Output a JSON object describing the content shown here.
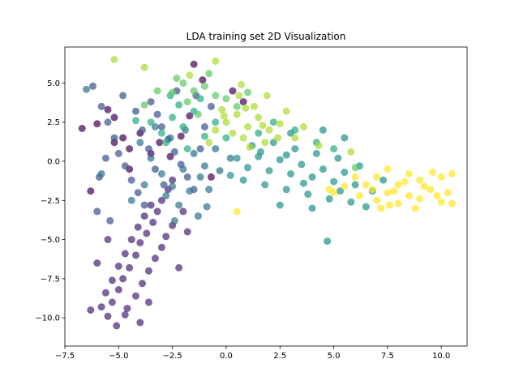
{
  "chart_data": {
    "type": "scatter",
    "title": "LDA training set 2D Visualization",
    "xlabel": "",
    "ylabel": "",
    "xlim": [
      -7.5,
      11.2
    ],
    "ylim": [
      -11.8,
      7.3
    ],
    "xticks": [
      -7.5,
      -5.0,
      -2.5,
      0.0,
      2.5,
      5.0,
      7.5,
      10.0
    ],
    "xtick_labels": [
      "−7.5",
      "−5.0",
      "−2.5",
      "0.0",
      "2.5",
      "5.0",
      "7.5",
      "10.0"
    ],
    "yticks": [
      5.0,
      2.5,
      0.0,
      -2.5,
      -5.0,
      -7.5,
      -10.0
    ],
    "ytick_labels": [
      "5.0",
      "2.5",
      "0.0",
      "−2.5",
      "−5.0",
      "−7.5",
      "−10.0"
    ],
    "grid": false,
    "legend": "none",
    "colormap": "viridis",
    "marker_alpha": 0.7,
    "series": [
      {
        "color": "#440154",
        "points": [
          [
            -6.7,
            2.1
          ],
          [
            -6.3,
            -1.9
          ],
          [
            -6.0,
            2.4
          ],
          [
            -5.5,
            3.3
          ],
          [
            -5.2,
            2.8
          ],
          [
            -4.8,
            1.5
          ],
          [
            -4.5,
            0.8
          ],
          [
            -4.0,
            1.8
          ],
          [
            -3.5,
            0.5
          ],
          [
            -3.1,
            1.2
          ],
          [
            -2.6,
            0.3
          ],
          [
            -2.1,
            1.6
          ],
          [
            -1.7,
            2.9
          ],
          [
            -1.1,
            5.2
          ],
          [
            -1.5,
            6.2
          ],
          [
            -0.7,
            -1.0
          ],
          [
            0.3,
            4.5
          ],
          [
            0.8,
            3.8
          ],
          [
            -4.5,
            -0.5
          ],
          [
            -5.2,
            1.2
          ]
        ]
      },
      {
        "color": "#482475",
        "points": [
          [
            -5.5,
            -9.9
          ],
          [
            -5.3,
            -9.0
          ],
          [
            -5.0,
            -8.2
          ],
          [
            -4.8,
            -7.5
          ],
          [
            -4.5,
            -6.8
          ],
          [
            -4.2,
            -6.0
          ],
          [
            -4.0,
            -5.2
          ],
          [
            -3.7,
            -4.6
          ],
          [
            -3.4,
            -3.9
          ],
          [
            -3.2,
            -3.2
          ],
          [
            -3.0,
            -2.5
          ],
          [
            -2.7,
            -1.8
          ],
          [
            -2.5,
            -1.2
          ],
          [
            -4.6,
            -9.4
          ],
          [
            -4.2,
            -8.6
          ],
          [
            -3.9,
            -7.8
          ],
          [
            -3.6,
            -7.0
          ],
          [
            -3.3,
            -6.2
          ],
          [
            -3.0,
            -5.5
          ],
          [
            -2.8,
            -4.8
          ],
          [
            -2.5,
            -4.1
          ],
          [
            -5.1,
            -10.5
          ],
          [
            -4.7,
            -9.8
          ],
          [
            -5.8,
            -9.3
          ],
          [
            -5.6,
            -8.4
          ],
          [
            -5.3,
            -7.6
          ],
          [
            -5.0,
            -6.7
          ],
          [
            -4.7,
            -5.9
          ],
          [
            -4.4,
            -5.0
          ],
          [
            -4.1,
            -4.2
          ],
          [
            -3.8,
            -3.5
          ],
          [
            -3.5,
            -2.8
          ],
          [
            -6.0,
            -6.5
          ],
          [
            -5.5,
            -5.0
          ],
          [
            -2.2,
            -6.8
          ],
          [
            -1.8,
            -4.5
          ],
          [
            -2.0,
            -3.2
          ],
          [
            -6.3,
            -9.5
          ],
          [
            -4.0,
            -10.3
          ],
          [
            -3.6,
            -9.0
          ]
        ]
      },
      {
        "color": "#3b528b",
        "points": [
          [
            -6.2,
            4.8
          ],
          [
            -5.8,
            3.5
          ],
          [
            -5.5,
            2.5
          ],
          [
            -5.2,
            1.5
          ],
          [
            -5.0,
            0.5
          ],
          [
            -4.7,
            -0.3
          ],
          [
            -4.4,
            -1.2
          ],
          [
            -4.1,
            -2.0
          ],
          [
            -3.8,
            -2.8
          ],
          [
            -3.5,
            3.8
          ],
          [
            -3.2,
            3.0
          ],
          [
            -3.0,
            2.2
          ],
          [
            -2.7,
            1.4
          ],
          [
            -2.4,
            0.6
          ],
          [
            -2.1,
            -0.2
          ],
          [
            -1.8,
            -1.0
          ],
          [
            -1.5,
            -1.8
          ],
          [
            -4.8,
            4.2
          ],
          [
            -4.2,
            3.2
          ],
          [
            -3.9,
            2.0
          ],
          [
            -3.6,
            0.8
          ],
          [
            -3.3,
            -0.5
          ],
          [
            -2.9,
            -1.5
          ],
          [
            -5.6,
            0.2
          ],
          [
            -5.9,
            -1.0
          ],
          [
            -1.2,
            0.8
          ],
          [
            -1.0,
            2.2
          ],
          [
            -0.7,
            3.5
          ],
          [
            -6.0,
            -3.2
          ],
          [
            -5.4,
            -3.8
          ],
          [
            -1.4,
            4.2
          ],
          [
            -2.3,
            4.5
          ]
        ]
      },
      {
        "color": "#2c728e",
        "points": [
          [
            -4.0,
            1.2
          ],
          [
            -3.5,
            0.2
          ],
          [
            -3.0,
            -0.8
          ],
          [
            -2.5,
            -1.6
          ],
          [
            -2.0,
            -0.5
          ],
          [
            -1.5,
            0.5
          ],
          [
            -1.0,
            -0.3
          ],
          [
            -0.5,
            0.8
          ],
          [
            -2.8,
            -2.2
          ],
          [
            -2.2,
            -2.8
          ],
          [
            -1.7,
            -1.9
          ],
          [
            -1.2,
            -1.0
          ],
          [
            -3.8,
            -1.5
          ],
          [
            -3.3,
            2.2
          ],
          [
            -2.6,
            1.5
          ],
          [
            -1.9,
            2.0
          ],
          [
            -0.8,
            -1.8
          ],
          [
            -0.3,
            -0.6
          ],
          [
            0.2,
            0.2
          ],
          [
            -4.4,
            -2.5
          ],
          [
            -5.8,
            -0.8
          ],
          [
            -2.4,
            -3.8
          ],
          [
            -1.3,
            -3.5
          ],
          [
            -6.5,
            4.6
          ],
          [
            -0.9,
            -2.9
          ]
        ]
      },
      {
        "color": "#21918c",
        "points": [
          [
            0.5,
            0.2
          ],
          [
            1.0,
            -0.4
          ],
          [
            1.5,
            0.3
          ],
          [
            2.0,
            -0.6
          ],
          [
            2.5,
            0.1
          ],
          [
            3.0,
            -0.8
          ],
          [
            3.5,
            -0.2
          ],
          [
            4.0,
            -1.0
          ],
          [
            4.5,
            -0.5
          ],
          [
            5.0,
            -1.3
          ],
          [
            5.5,
            -0.7
          ],
          [
            6.0,
            -1.5
          ],
          [
            1.2,
            1.0
          ],
          [
            2.2,
            1.2
          ],
          [
            3.2,
            0.8
          ],
          [
            4.2,
            0.5
          ],
          [
            5.2,
            0.2
          ],
          [
            6.2,
            -0.3
          ],
          [
            0.8,
            -1.2
          ],
          [
            1.8,
            -1.5
          ],
          [
            2.8,
            -1.8
          ],
          [
            3.8,
            -2.1
          ],
          [
            4.8,
            -2.4
          ],
          [
            5.8,
            -2.6
          ],
          [
            6.8,
            -1.9
          ],
          [
            7.3,
            -1.2
          ],
          [
            3.0,
            1.8
          ],
          [
            4.5,
            2.0
          ],
          [
            5.5,
            1.5
          ],
          [
            2.5,
            -2.8
          ],
          [
            4.7,
            -5.1
          ],
          [
            4.0,
            -3.0
          ],
          [
            6.5,
            -2.9
          ],
          [
            0.2,
            -0.9
          ],
          [
            1.6,
            0.6
          ],
          [
            2.8,
            0.4
          ],
          [
            3.6,
            -1.4
          ],
          [
            5.3,
            -1.9
          ]
        ]
      },
      {
        "color": "#27ad81",
        "points": [
          [
            -3.5,
            2.5
          ],
          [
            -3.0,
            1.8
          ],
          [
            -2.5,
            2.8
          ],
          [
            -2.0,
            2.2
          ],
          [
            -1.5,
            3.2
          ],
          [
            -1.0,
            1.6
          ],
          [
            -0.5,
            2.5
          ],
          [
            0.0,
            1.5
          ],
          [
            -2.2,
            3.6
          ],
          [
            -1.2,
            4.0
          ],
          [
            -2.8,
            1.2
          ],
          [
            -1.8,
            0.8
          ],
          [
            2.2,
            2.5
          ],
          [
            3.2,
            2.0
          ],
          [
            4.2,
            1.2
          ],
          [
            5.0,
            0.8
          ],
          [
            -4.2,
            2.6
          ],
          [
            -2.6,
            4.2
          ],
          [
            1.5,
            1.8
          ]
        ]
      },
      {
        "color": "#5ec962",
        "points": [
          [
            -2.0,
            5.0
          ],
          [
            -1.5,
            4.5
          ],
          [
            -1.0,
            4.8
          ],
          [
            -0.5,
            4.2
          ],
          [
            0.0,
            4.0
          ],
          [
            -2.5,
            4.4
          ],
          [
            -1.8,
            3.8
          ],
          [
            0.5,
            3.5
          ],
          [
            -3.2,
            4.5
          ],
          [
            -0.8,
            5.6
          ],
          [
            -2.3,
            5.3
          ],
          [
            -3.8,
            3.6
          ],
          [
            6.0,
            -0.4
          ],
          [
            1.0,
            4.4
          ],
          [
            -1.3,
            3.0
          ]
        ]
      },
      {
        "color": "#addc30",
        "points": [
          [
            0.0,
            2.5
          ],
          [
            0.5,
            3.0
          ],
          [
            1.0,
            2.2
          ],
          [
            1.5,
            2.8
          ],
          [
            2.0,
            2.0
          ],
          [
            -0.5,
            2.0
          ],
          [
            0.3,
            1.8
          ],
          [
            0.8,
            1.5
          ],
          [
            1.3,
            3.5
          ],
          [
            2.5,
            2.4
          ],
          [
            -0.2,
            3.3
          ],
          [
            1.8,
            1.2
          ],
          [
            0.6,
            4.2
          ],
          [
            1.1,
            0.9
          ],
          [
            2.8,
            3.2
          ],
          [
            -0.8,
            1.2
          ],
          [
            3.2,
            1.5
          ],
          [
            -5.2,
            6.5
          ],
          [
            -0.5,
            6.4
          ],
          [
            0.7,
            4.9
          ],
          [
            1.9,
            4.2
          ],
          [
            2.4,
            1.5
          ],
          [
            -0.1,
            2.9
          ],
          [
            0.9,
            3.4
          ],
          [
            1.7,
            2.3
          ],
          [
            3.6,
            2.2
          ],
          [
            4.3,
            1.0
          ],
          [
            5.8,
            0.6
          ],
          [
            -1.7,
            5.5
          ],
          [
            -3.8,
            6.0
          ]
        ]
      },
      {
        "color": "#fde725",
        "points": [
          [
            6.5,
            -1.5
          ],
          [
            7.0,
            -1.0
          ],
          [
            7.5,
            -2.0
          ],
          [
            8.0,
            -1.5
          ],
          [
            8.5,
            -2.2
          ],
          [
            9.0,
            -1.2
          ],
          [
            9.5,
            -1.8
          ],
          [
            10.0,
            -1.0
          ],
          [
            10.5,
            -0.8
          ],
          [
            7.0,
            -2.5
          ],
          [
            8.0,
            -2.7
          ],
          [
            9.0,
            -2.4
          ],
          [
            6.0,
            -1.0
          ],
          [
            5.5,
            -1.6
          ],
          [
            7.5,
            -0.5
          ],
          [
            8.5,
            -0.8
          ],
          [
            9.8,
            -2.2
          ],
          [
            10.3,
            -2.0
          ],
          [
            6.2,
            -2.2
          ],
          [
            8.8,
            -3.0
          ],
          [
            7.2,
            -3.0
          ],
          [
            5.0,
            -2.0
          ],
          [
            10.5,
            -2.7
          ],
          [
            0.5,
            -3.2
          ],
          [
            7.8,
            -1.9
          ],
          [
            8.3,
            -1.3
          ],
          [
            9.2,
            -1.6
          ],
          [
            6.8,
            -1.8
          ],
          [
            9.6,
            -0.7
          ],
          [
            7.6,
            -2.8
          ],
          [
            4.8,
            -1.8
          ],
          [
            10.0,
            -2.6
          ]
        ]
      }
    ]
  }
}
